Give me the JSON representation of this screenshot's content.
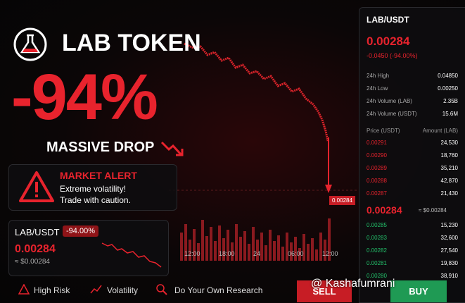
{
  "header": {
    "title": "LAB TOKEN",
    "headline": "-94%",
    "subtitle": "MASSIVE DROP"
  },
  "alert": {
    "title": "MARKET ALERT",
    "lines": [
      "Extreme volatility!",
      "Trade with caution."
    ]
  },
  "mini_card": {
    "pair": "LAB/USDT",
    "change": "-94.00%",
    "price": "0.00284",
    "usd": "≈ $0.00284"
  },
  "chart": {
    "price_tag": "0.00284",
    "time_labels": [
      "12:00",
      "18:00",
      "24",
      "06:00",
      "12:00"
    ]
  },
  "footer": [
    "High Risk",
    "Volatility",
    "Do Your Own Research"
  ],
  "panel": {
    "pair": "LAB/USDT",
    "price": "0.00284",
    "change": "-0.0450 (-94.00%)",
    "stats": [
      [
        "24h High",
        "0.04850"
      ],
      [
        "24h Low",
        "0.00250"
      ],
      [
        "24h Volume (LAB)",
        "2.35B"
      ],
      [
        "24h Volume (USDT)",
        "15.6M"
      ]
    ],
    "book_header": [
      "Price (USDT)",
      "Amount (LAB)"
    ],
    "asks": [
      [
        "0.00291",
        "24,530"
      ],
      [
        "0.00290",
        "18,760"
      ],
      [
        "0.00289",
        "35,210"
      ],
      [
        "0.00288",
        "42,870"
      ],
      [
        "0.00287",
        "21,430"
      ]
    ],
    "mid": "0.00284",
    "mid_usd": "≈ $0.00284",
    "bids": [
      [
        "0.00285",
        "15,230"
      ],
      [
        "0.00283",
        "32,600"
      ],
      [
        "0.00282",
        "27,540"
      ],
      [
        "0.00281",
        "19,830"
      ],
      [
        "0.00280",
        "38,910"
      ]
    ]
  },
  "buttons": {
    "sell": "SELL",
    "buy": "BUY"
  },
  "watermark": "@ Kashafumrani"
}
